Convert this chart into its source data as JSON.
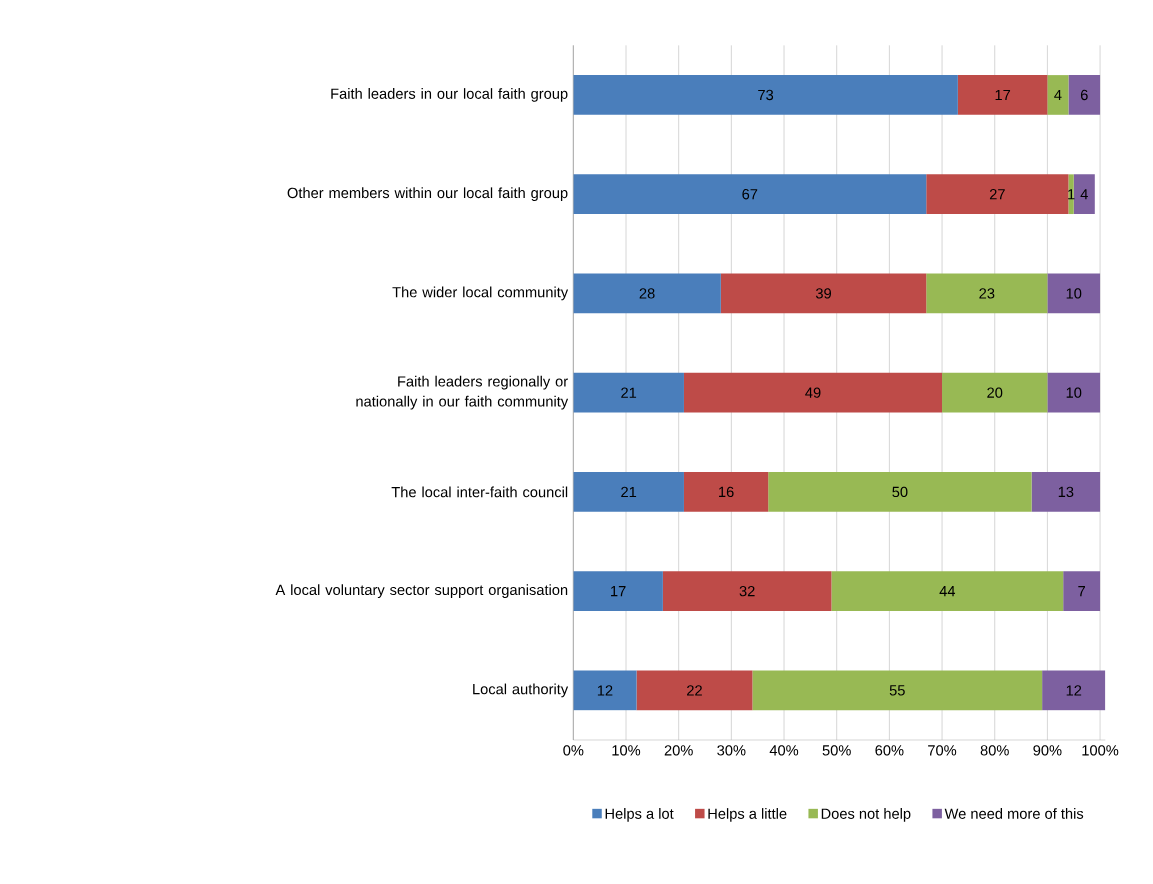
{
  "chart_data": {
    "type": "bar",
    "orientation": "horizontal",
    "stacked": true,
    "data_labels": true,
    "grid": "x",
    "legend": "bottom",
    "categories": [
      "Faith leaders in our local faith group",
      "Other members within our local faith group",
      "The wider local community",
      "Faith leaders regionally or nationally in our faith community",
      "The local inter-faith council",
      "A local voluntary sector support organisation",
      "Local authority"
    ],
    "xlim": [
      0,
      101
    ],
    "xticks": [
      {
        "value": 0,
        "label": "0%"
      },
      {
        "value": 10,
        "label": "10%"
      },
      {
        "value": 20,
        "label": "20%"
      },
      {
        "value": 30,
        "label": "30%"
      },
      {
        "value": 40,
        "label": "40%"
      },
      {
        "value": 50,
        "label": "50%"
      },
      {
        "value": 60,
        "label": "60%"
      },
      {
        "value": 70,
        "label": "70%"
      },
      {
        "value": 80,
        "label": "80%"
      },
      {
        "value": 90,
        "label": "90%"
      },
      {
        "value": 100,
        "label": "100%"
      }
    ],
    "series": [
      {
        "name": "Helps a lot",
        "color": "#4a7ebb",
        "values": [
          73,
          67,
          28,
          21,
          21,
          17,
          12
        ]
      },
      {
        "name": "Helps a little",
        "color": "#be4b48",
        "values": [
          17,
          27,
          39,
          49,
          16,
          32,
          22
        ]
      },
      {
        "name": "Does not help",
        "color": "#98b954",
        "values": [
          4,
          1,
          23,
          20,
          50,
          44,
          55
        ]
      },
      {
        "name": "We need more of this",
        "color": "#7d60a0",
        "values": [
          6,
          4,
          10,
          10,
          13,
          7,
          12
        ]
      }
    ]
  }
}
